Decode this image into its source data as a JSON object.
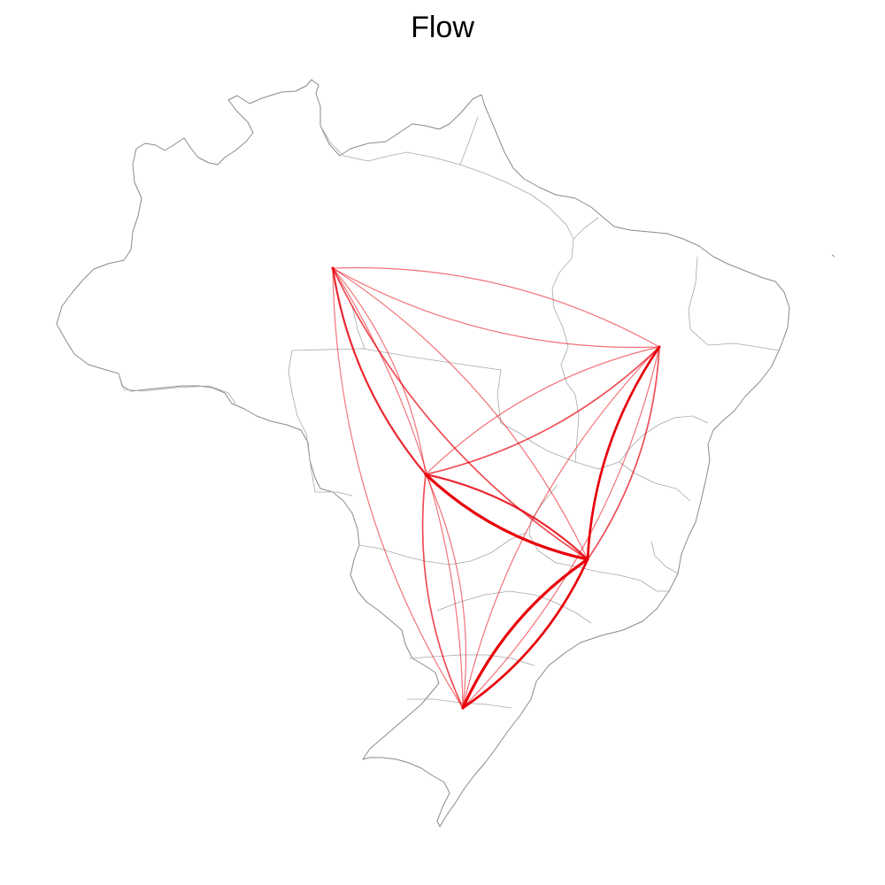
{
  "title": "Flow",
  "colors": {
    "flow": "#e8000b",
    "border": "#8a8a8a",
    "background": "#ffffff"
  },
  "flows": [
    {
      "from": "node-1",
      "to": "node-2",
      "value": 3
    },
    {
      "from": "node-1",
      "to": "node-2",
      "value": 1
    },
    {
      "from": "node-1",
      "to": "node-3",
      "value": 1
    },
    {
      "from": "node-1",
      "to": "node-3",
      "value": 1
    },
    {
      "from": "node-1",
      "to": "node-4",
      "value": 2
    },
    {
      "from": "node-1",
      "to": "node-4",
      "value": 1
    },
    {
      "from": "node-1",
      "to": "node-5",
      "value": 1
    },
    {
      "from": "node-1",
      "to": "node-5",
      "value": 1
    },
    {
      "from": "node-2",
      "to": "node-3",
      "value": 2
    },
    {
      "from": "node-2",
      "to": "node-3",
      "value": 1
    },
    {
      "from": "node-2",
      "to": "node-4",
      "value": 5
    },
    {
      "from": "node-2",
      "to": "node-4",
      "value": 3
    },
    {
      "from": "node-2",
      "to": "node-5",
      "value": 2
    },
    {
      "from": "node-2",
      "to": "node-5",
      "value": 1
    },
    {
      "from": "node-3",
      "to": "node-4",
      "value": 4
    },
    {
      "from": "node-3",
      "to": "node-4",
      "value": 2
    },
    {
      "from": "node-3",
      "to": "node-5",
      "value": 1
    },
    {
      "from": "node-3",
      "to": "node-5",
      "value": 1
    },
    {
      "from": "node-4",
      "to": "node-5",
      "value": 5
    },
    {
      "from": "node-4",
      "to": "node-5",
      "value": 4
    }
  ]
}
